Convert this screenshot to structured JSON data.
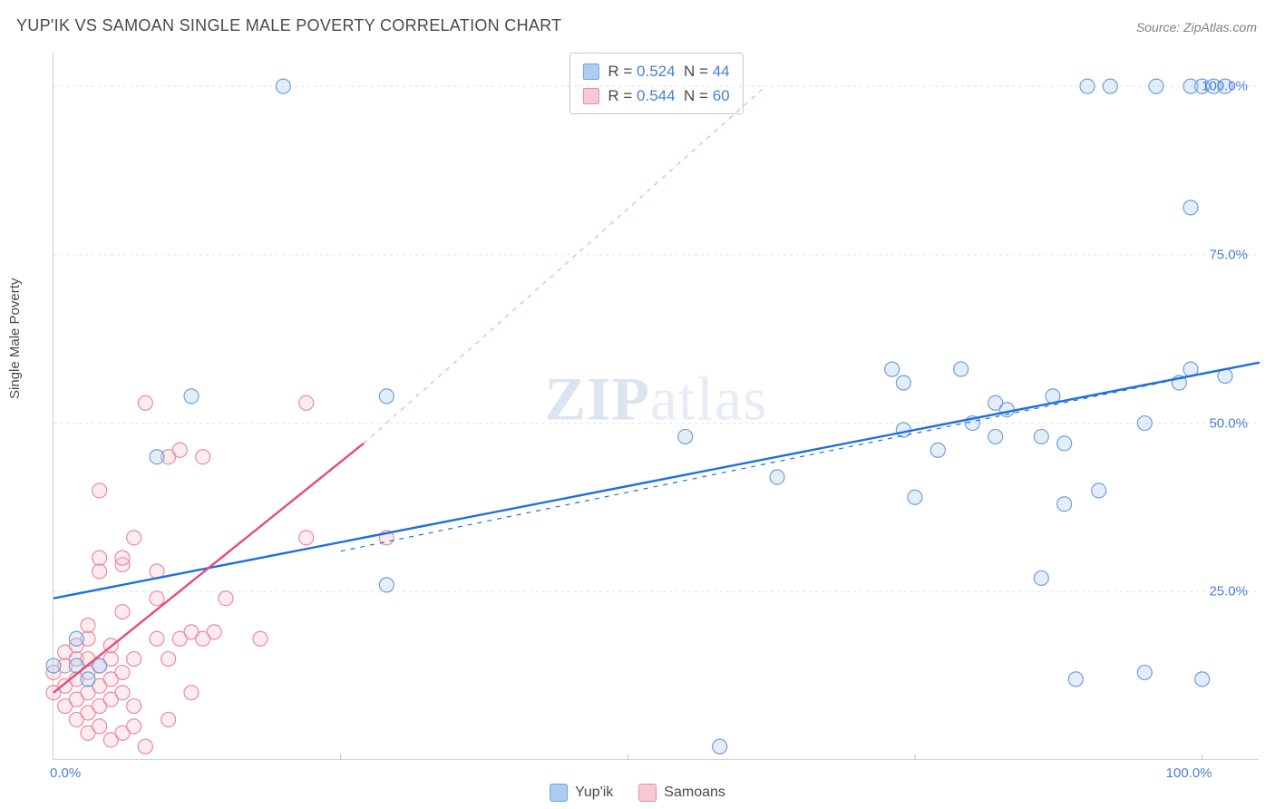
{
  "title": "YUP'IK VS SAMOAN SINGLE MALE POVERTY CORRELATION CHART",
  "source": "Source: ZipAtlas.com",
  "ylabel": "Single Male Poverty",
  "watermark_a": "ZIP",
  "watermark_b": "atlas",
  "chart": {
    "type": "scatter",
    "xlim": [
      0,
      105
    ],
    "ylim": [
      0,
      105
    ],
    "xticks": [
      0,
      25,
      50,
      75,
      100
    ],
    "yticks": [
      25,
      50,
      75,
      100
    ],
    "xtick_labels": [
      "0.0%",
      "",
      "",
      "",
      "100.0%"
    ],
    "ytick_labels": [
      "25.0%",
      "50.0%",
      "75.0%",
      "100.0%"
    ],
    "grid_color": "#e0e0e0",
    "axis_color": "#d0d0d0",
    "label_color": "#4a7fd6",
    "label_fontsize": 15,
    "title_fontsize": 18,
    "marker_radius": 8,
    "series": [
      {
        "name": "Yup'ik",
        "color_fill": "#aecdf2",
        "color_stroke": "#6fa0de",
        "r": "0.524",
        "n": "44",
        "trend": {
          "x1": 0,
          "y1": 24,
          "x2": 105,
          "y2": 59,
          "color": "#1f6fe0",
          "width": 2.4
        },
        "trend_dashed": {
          "x1": 25,
          "y1": 31,
          "x2": 105,
          "y2": 59
        },
        "points": [
          [
            0,
            14
          ],
          [
            2,
            14
          ],
          [
            4,
            14
          ],
          [
            2,
            18
          ],
          [
            3,
            12
          ],
          [
            9,
            45
          ],
          [
            12,
            54
          ],
          [
            20,
            100
          ],
          [
            29,
            54
          ],
          [
            29,
            26
          ],
          [
            55,
            48
          ],
          [
            63,
            42
          ],
          [
            58,
            2
          ],
          [
            73,
            58
          ],
          [
            74,
            49
          ],
          [
            74,
            56
          ],
          [
            75,
            39
          ],
          [
            77,
            46
          ],
          [
            79,
            58
          ],
          [
            80,
            50
          ],
          [
            82,
            48
          ],
          [
            82,
            53
          ],
          [
            83,
            52
          ],
          [
            86,
            48
          ],
          [
            86,
            27
          ],
          [
            87,
            54
          ],
          [
            88,
            47
          ],
          [
            88,
            38
          ],
          [
            89,
            12
          ],
          [
            90,
            100
          ],
          [
            91,
            40
          ],
          [
            92,
            100
          ],
          [
            95,
            13
          ],
          [
            95,
            50
          ],
          [
            96,
            100
          ],
          [
            98,
            56
          ],
          [
            99,
            100
          ],
          [
            99,
            58
          ],
          [
            99,
            82
          ],
          [
            100,
            100
          ],
          [
            100,
            12
          ],
          [
            101,
            100
          ],
          [
            102,
            100
          ],
          [
            102,
            57
          ]
        ]
      },
      {
        "name": "Samoans",
        "color_fill": "#f7c9d2",
        "color_stroke": "#ea8ba1",
        "r": "0.544",
        "n": "60",
        "trend": {
          "x1": 0,
          "y1": 10,
          "x2": 27,
          "y2": 47,
          "color": "#e84a73",
          "width": 2.4
        },
        "trend_dashed": {
          "x1": 27,
          "y1": 47,
          "x2": 62,
          "y2": 100,
          "color": "#f2a9b9"
        },
        "points": [
          [
            0,
            10
          ],
          [
            0,
            13
          ],
          [
            1,
            8
          ],
          [
            1,
            11
          ],
          [
            1,
            14
          ],
          [
            1,
            16
          ],
          [
            2,
            6
          ],
          [
            2,
            9
          ],
          [
            2,
            12
          ],
          [
            2,
            15
          ],
          [
            2,
            17
          ],
          [
            3,
            4
          ],
          [
            3,
            7
          ],
          [
            3,
            10
          ],
          [
            3,
            13
          ],
          [
            3,
            15
          ],
          [
            3,
            18
          ],
          [
            3,
            20
          ],
          [
            4,
            5
          ],
          [
            4,
            8
          ],
          [
            4,
            11
          ],
          [
            4,
            14
          ],
          [
            4,
            28
          ],
          [
            4,
            30
          ],
          [
            4,
            40
          ],
          [
            5,
            3
          ],
          [
            5,
            9
          ],
          [
            5,
            12
          ],
          [
            5,
            15
          ],
          [
            5,
            17
          ],
          [
            6,
            4
          ],
          [
            6,
            10
          ],
          [
            6,
            13
          ],
          [
            6,
            22
          ],
          [
            6,
            29
          ],
          [
            6,
            30
          ],
          [
            7,
            5
          ],
          [
            7,
            8
          ],
          [
            7,
            15
          ],
          [
            7,
            33
          ],
          [
            8,
            2
          ],
          [
            8,
            53
          ],
          [
            9,
            18
          ],
          [
            9,
            24
          ],
          [
            9,
            28
          ],
          [
            10,
            6
          ],
          [
            10,
            15
          ],
          [
            10,
            45
          ],
          [
            11,
            18
          ],
          [
            11,
            46
          ],
          [
            12,
            10
          ],
          [
            12,
            19
          ],
          [
            13,
            18
          ],
          [
            13,
            45
          ],
          [
            14,
            19
          ],
          [
            15,
            24
          ],
          [
            18,
            18
          ],
          [
            22,
            33
          ],
          [
            22,
            53
          ],
          [
            29,
            33
          ]
        ]
      }
    ]
  },
  "legend": [
    {
      "label": "Yup'ik",
      "fill": "#aecdf2",
      "stroke": "#6fa0de"
    },
    {
      "label": "Samoans",
      "fill": "#f7c9d2",
      "stroke": "#ea8ba1"
    }
  ]
}
